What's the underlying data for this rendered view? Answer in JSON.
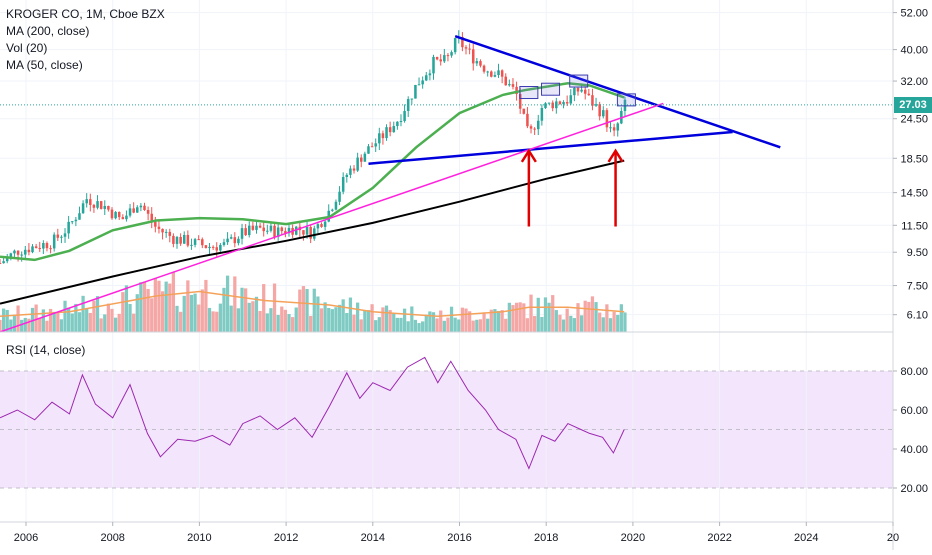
{
  "header": {
    "symbol_line": "KROGER CO, 1M, Cboe BZX",
    "indicator_1": "MA (200, close)",
    "indicator_2": "Vol (20)",
    "indicator_3": "MA (50, close)"
  },
  "rsi_label": "RSI (14, close)",
  "last_price": "27.03",
  "colors": {
    "up": "#26a69a",
    "down": "#ef5350",
    "ma50": "#4caf50",
    "ma200": "#000000",
    "vol_ma": "#f4a259",
    "trendline_blue": "#0000dd",
    "trendline_magenta": "#ff22dd",
    "arrow": "#e00000",
    "rsi_line": "#9c27b0",
    "rsi_band": "#f3e5fc",
    "price_line": "#26a69a"
  },
  "chart_data": [
    {
      "type": "candlestick",
      "title": "KROGER CO, 1M, Cboe BZX",
      "y_scale": "log",
      "y_ticks": [
        "52.00",
        "40.00",
        "32.00",
        "24.50",
        "18.50",
        "14.50",
        "11.50",
        "9.50",
        "7.50",
        "6.10"
      ],
      "x_ticks": [
        "2006",
        "2008",
        "2010",
        "2012",
        "2014",
        "2016",
        "2018",
        "2020",
        "2022",
        "2024",
        "20"
      ],
      "x_range": [
        2005.4,
        2026.0
      ],
      "price_series": [
        {
          "t": 2005.4,
          "v": 8.8
        },
        {
          "t": 2005.8,
          "v": 9.6
        },
        {
          "t": 2006.2,
          "v": 9.9
        },
        {
          "t": 2006.6,
          "v": 10.2
        },
        {
          "t": 2007.0,
          "v": 11.4
        },
        {
          "t": 2007.4,
          "v": 13.9
        },
        {
          "t": 2007.8,
          "v": 13.2
        },
        {
          "t": 2008.2,
          "v": 11.9
        },
        {
          "t": 2008.6,
          "v": 13.6
        },
        {
          "t": 2009.0,
          "v": 11.3
        },
        {
          "t": 2009.4,
          "v": 10.5
        },
        {
          "t": 2009.8,
          "v": 10.2
        },
        {
          "t": 2010.2,
          "v": 9.9
        },
        {
          "t": 2010.6,
          "v": 10.0
        },
        {
          "t": 2011.0,
          "v": 10.9
        },
        {
          "t": 2011.4,
          "v": 11.2
        },
        {
          "t": 2011.8,
          "v": 11.0
        },
        {
          "t": 2012.2,
          "v": 11.3
        },
        {
          "t": 2012.6,
          "v": 10.9
        },
        {
          "t": 2013.0,
          "v": 12.8
        },
        {
          "t": 2013.4,
          "v": 16.5
        },
        {
          "t": 2013.8,
          "v": 19.2
        },
        {
          "t": 2014.2,
          "v": 21.5
        },
        {
          "t": 2014.6,
          "v": 24.5
        },
        {
          "t": 2015.0,
          "v": 31.0
        },
        {
          "t": 2015.4,
          "v": 36.5
        },
        {
          "t": 2015.7,
          "v": 37.0
        },
        {
          "t": 2015.95,
          "v": 43.0
        },
        {
          "t": 2016.3,
          "v": 38.0
        },
        {
          "t": 2016.6,
          "v": 35.0
        },
        {
          "t": 2016.9,
          "v": 33.5
        },
        {
          "t": 2017.3,
          "v": 29.5
        },
        {
          "t": 2017.6,
          "v": 21.5
        },
        {
          "t": 2017.9,
          "v": 26.5
        },
        {
          "t": 2018.2,
          "v": 27.5
        },
        {
          "t": 2018.5,
          "v": 28.0
        },
        {
          "t": 2018.8,
          "v": 30.5
        },
        {
          "t": 2019.0,
          "v": 28.0
        },
        {
          "t": 2019.3,
          "v": 25.5
        },
        {
          "t": 2019.55,
          "v": 21.5
        },
        {
          "t": 2019.8,
          "v": 27.0
        }
      ],
      "ma50": [
        {
          "t": 2005.4,
          "v": 9.2
        },
        {
          "t": 2006.2,
          "v": 9.0
        },
        {
          "t": 2007.0,
          "v": 9.6
        },
        {
          "t": 2008.0,
          "v": 11.1
        },
        {
          "t": 2009.0,
          "v": 11.9
        },
        {
          "t": 2010.0,
          "v": 12.1
        },
        {
          "t": 2011.0,
          "v": 12.0
        },
        {
          "t": 2012.0,
          "v": 11.6
        },
        {
          "t": 2013.0,
          "v": 12.2
        },
        {
          "t": 2014.0,
          "v": 15.0
        },
        {
          "t": 2015.0,
          "v": 20.0
        },
        {
          "t": 2016.0,
          "v": 25.5
        },
        {
          "t": 2017.0,
          "v": 29.0
        },
        {
          "t": 2017.5,
          "v": 30.0
        },
        {
          "t": 2018.5,
          "v": 31.5
        },
        {
          "t": 2019.0,
          "v": 31.0
        },
        {
          "t": 2019.8,
          "v": 28.5
        }
      ],
      "ma200": [
        {
          "t": 2005.4,
          "v": 6.6
        },
        {
          "t": 2008.0,
          "v": 8.0
        },
        {
          "t": 2010.0,
          "v": 9.2
        },
        {
          "t": 2012.0,
          "v": 10.3
        },
        {
          "t": 2014.0,
          "v": 11.7
        },
        {
          "t": 2016.0,
          "v": 13.6
        },
        {
          "t": 2018.0,
          "v": 16.0
        },
        {
          "t": 2019.8,
          "v": 18.2
        }
      ],
      "trendlines": [
        {
          "name": "upper-resistance",
          "from": {
            "t": 2015.9,
            "v": 44.0
          },
          "to": {
            "t": 2023.4,
            "v": 20.0
          }
        },
        {
          "name": "lower-support",
          "from": {
            "t": 2013.9,
            "v": 17.8
          },
          "to": {
            "t": 2022.3,
            "v": 22.3
          }
        },
        {
          "name": "long-term-support",
          "from": {
            "t": 2005.4,
            "v": 5.4
          },
          "to": {
            "t": 2020.7,
            "v": 27.3
          }
        }
      ],
      "arrows": [
        {
          "t": 2017.6,
          "v_from": 11.4,
          "v_to": 19.5
        },
        {
          "t": 2019.6,
          "v_from": 11.4,
          "v_to": 19.5
        }
      ],
      "boxes": [
        {
          "t": 2017.6,
          "v": 29.5
        },
        {
          "t": 2018.1,
          "v": 30.2
        },
        {
          "t": 2018.75,
          "v": 32.0
        },
        {
          "t": 2019.85,
          "v": 28.0
        }
      ],
      "volume_ma": [
        {
          "t": 2005.4,
          "v": 0.35
        },
        {
          "t": 2007.0,
          "v": 0.45
        },
        {
          "t": 2009.0,
          "v": 0.8
        },
        {
          "t": 2010.0,
          "v": 0.9
        },
        {
          "t": 2011.5,
          "v": 0.7
        },
        {
          "t": 2013.0,
          "v": 0.6
        },
        {
          "t": 2014.0,
          "v": 0.45
        },
        {
          "t": 2015.5,
          "v": 0.35
        },
        {
          "t": 2017.0,
          "v": 0.45
        },
        {
          "t": 2017.6,
          "v": 0.55
        },
        {
          "t": 2018.5,
          "v": 0.55
        },
        {
          "t": 2019.8,
          "v": 0.45
        }
      ]
    },
    {
      "type": "line",
      "title": "RSI (14, close)",
      "y_ticks": [
        "80.00",
        "60.00",
        "40.00",
        "20.00"
      ],
      "ylim": [
        0,
        100
      ],
      "band": [
        20,
        80
      ],
      "series": [
        {
          "t": 2005.4,
          "v": 56
        },
        {
          "t": 2005.8,
          "v": 60
        },
        {
          "t": 2006.2,
          "v": 55
        },
        {
          "t": 2006.6,
          "v": 64
        },
        {
          "t": 2007.0,
          "v": 58
        },
        {
          "t": 2007.3,
          "v": 78
        },
        {
          "t": 2007.6,
          "v": 63
        },
        {
          "t": 2008.0,
          "v": 56
        },
        {
          "t": 2008.4,
          "v": 73
        },
        {
          "t": 2008.8,
          "v": 48
        },
        {
          "t": 2009.1,
          "v": 36
        },
        {
          "t": 2009.5,
          "v": 45
        },
        {
          "t": 2009.9,
          "v": 44
        },
        {
          "t": 2010.3,
          "v": 47
        },
        {
          "t": 2010.7,
          "v": 42
        },
        {
          "t": 2011.0,
          "v": 53
        },
        {
          "t": 2011.4,
          "v": 57
        },
        {
          "t": 2011.8,
          "v": 50
        },
        {
          "t": 2012.2,
          "v": 56
        },
        {
          "t": 2012.6,
          "v": 46
        },
        {
          "t": 2013.0,
          "v": 62
        },
        {
          "t": 2013.4,
          "v": 79
        },
        {
          "t": 2013.7,
          "v": 66
        },
        {
          "t": 2014.0,
          "v": 74
        },
        {
          "t": 2014.4,
          "v": 70
        },
        {
          "t": 2014.8,
          "v": 82
        },
        {
          "t": 2015.2,
          "v": 87
        },
        {
          "t": 2015.5,
          "v": 74
        },
        {
          "t": 2015.8,
          "v": 85
        },
        {
          "t": 2016.2,
          "v": 70
        },
        {
          "t": 2016.6,
          "v": 60
        },
        {
          "t": 2016.9,
          "v": 50
        },
        {
          "t": 2017.3,
          "v": 45
        },
        {
          "t": 2017.6,
          "v": 30
        },
        {
          "t": 2017.9,
          "v": 47
        },
        {
          "t": 2018.2,
          "v": 44
        },
        {
          "t": 2018.5,
          "v": 53
        },
        {
          "t": 2018.8,
          "v": 50
        },
        {
          "t": 2019.0,
          "v": 48
        },
        {
          "t": 2019.3,
          "v": 46
        },
        {
          "t": 2019.55,
          "v": 38
        },
        {
          "t": 2019.8,
          "v": 50
        }
      ]
    }
  ]
}
